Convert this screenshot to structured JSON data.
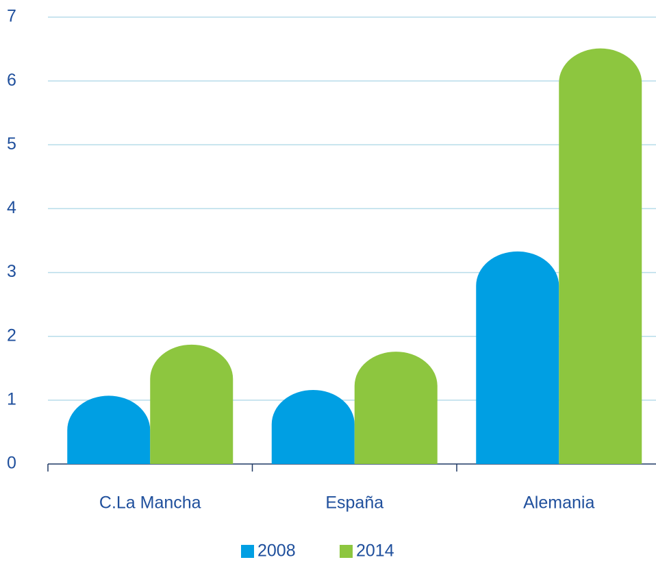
{
  "chart_data": {
    "type": "bar",
    "categories": [
      "C.La Mancha",
      "España",
      "Alemania"
    ],
    "series": [
      {
        "name": "2008",
        "color": "#009fe3",
        "values": [
          1.07,
          1.16,
          3.33
        ]
      },
      {
        "name": "2014",
        "color": "#8dc63f",
        "values": [
          1.87,
          1.76,
          6.51
        ]
      }
    ],
    "ylim": [
      0,
      7
    ],
    "yticks": [
      0,
      1,
      2,
      3,
      4,
      5,
      6,
      7
    ],
    "grid": true,
    "legend": "bottom"
  }
}
